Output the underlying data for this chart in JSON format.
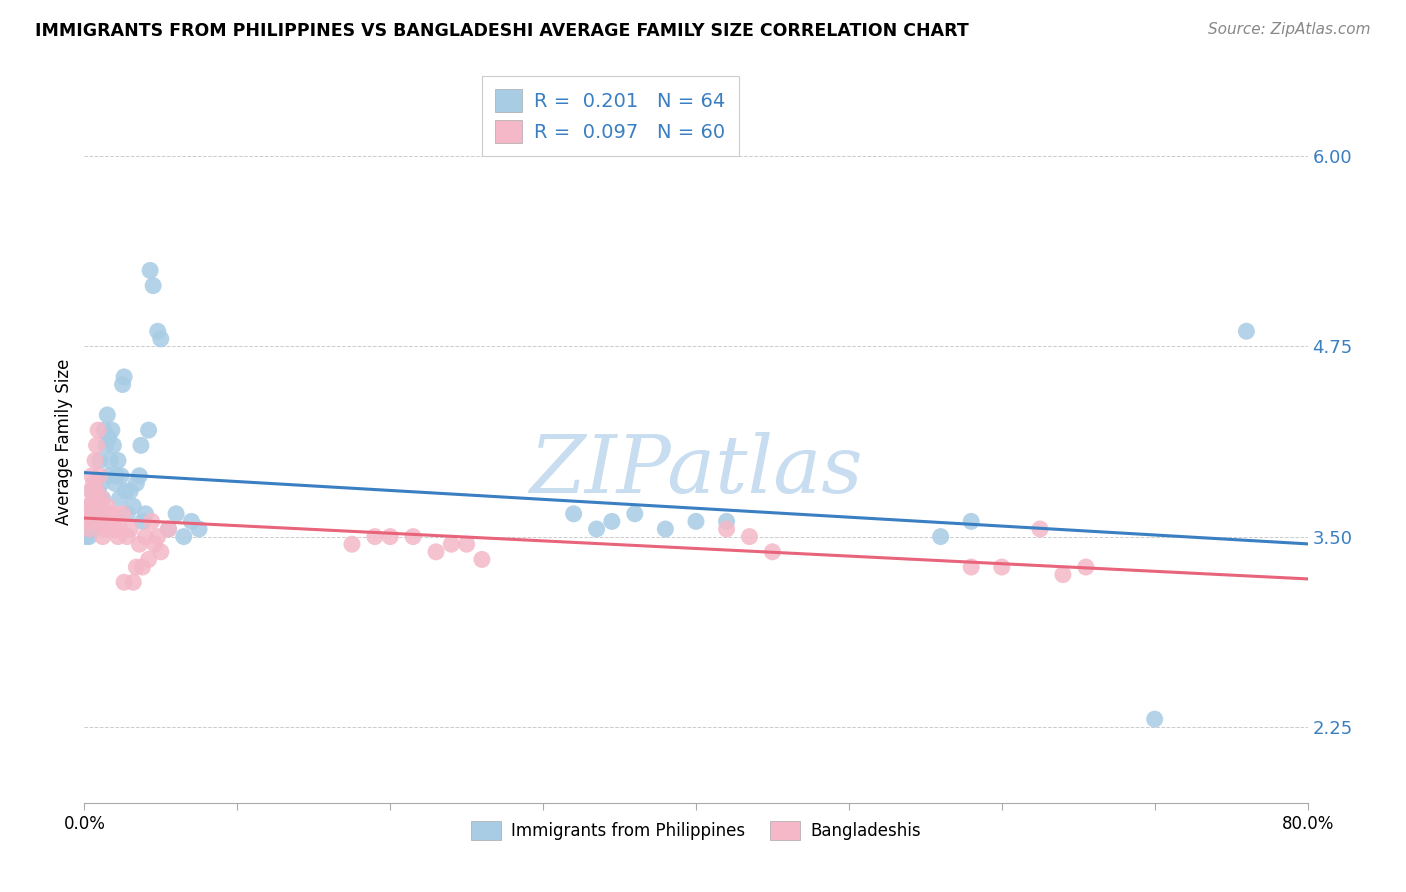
{
  "title": "IMMIGRANTS FROM PHILIPPINES VS BANGLADESHI AVERAGE FAMILY SIZE CORRELATION CHART",
  "source": "Source: ZipAtlas.com",
  "ylabel": "Average Family Size",
  "yticks": [
    2.25,
    3.5,
    4.75,
    6.0
  ],
  "legend_labels_bottom": [
    "Immigrants from Philippines",
    "Bangladeshis"
  ],
  "philippines_R": 0.201,
  "philippines_N": 64,
  "bangladeshi_R": 0.097,
  "bangladeshi_N": 60,
  "color_blue": "#a8cce4",
  "color_pink": "#f4b8c8",
  "color_blue_line": "#3a7fc1",
  "color_pink_line": "#e8647a",
  "color_blue_text": "#3a7fc1",
  "watermark_color": "#c8ddf0",
  "background_color": "#ffffff",
  "xlim": [
    0.0,
    0.8
  ],
  "ylim": [
    1.75,
    6.5
  ],
  "phil_x": [
    0.001,
    0.002,
    0.003,
    0.004,
    0.004,
    0.005,
    0.005,
    0.006,
    0.006,
    0.007,
    0.007,
    0.008,
    0.008,
    0.009,
    0.009,
    0.01,
    0.01,
    0.011,
    0.012,
    0.013,
    0.014,
    0.015,
    0.016,
    0.016,
    0.017,
    0.018,
    0.019,
    0.02,
    0.021,
    0.022,
    0.023,
    0.024,
    0.025,
    0.026,
    0.027,
    0.028,
    0.03,
    0.032,
    0.034,
    0.036,
    0.037,
    0.038,
    0.04,
    0.042,
    0.043,
    0.045,
    0.048,
    0.05,
    0.055,
    0.06,
    0.065,
    0.07,
    0.075,
    0.32,
    0.335,
    0.345,
    0.36,
    0.38,
    0.4,
    0.42,
    0.56,
    0.58,
    0.7,
    0.76
  ],
  "phil_y": [
    3.5,
    3.6,
    3.5,
    3.7,
    3.6,
    3.8,
    3.65,
    3.7,
    3.55,
    3.75,
    3.6,
    3.7,
    3.65,
    3.8,
    3.7,
    4.0,
    3.75,
    3.85,
    3.75,
    4.2,
    4.1,
    4.3,
    4.15,
    3.9,
    4.0,
    4.2,
    4.1,
    3.85,
    3.9,
    4.0,
    3.75,
    3.9,
    4.5,
    4.55,
    3.8,
    3.65,
    3.8,
    3.7,
    3.85,
    3.9,
    4.1,
    3.6,
    3.65,
    4.2,
    5.25,
    5.15,
    4.85,
    4.8,
    3.55,
    3.65,
    3.5,
    3.6,
    3.55,
    3.65,
    3.55,
    3.6,
    3.65,
    3.55,
    3.6,
    3.6,
    3.5,
    3.6,
    2.3,
    4.85
  ],
  "bang_x": [
    0.001,
    0.002,
    0.003,
    0.003,
    0.004,
    0.005,
    0.005,
    0.006,
    0.006,
    0.007,
    0.007,
    0.008,
    0.008,
    0.009,
    0.009,
    0.01,
    0.01,
    0.011,
    0.012,
    0.013,
    0.014,
    0.015,
    0.016,
    0.017,
    0.018,
    0.019,
    0.02,
    0.022,
    0.023,
    0.025,
    0.026,
    0.028,
    0.03,
    0.032,
    0.034,
    0.036,
    0.038,
    0.04,
    0.042,
    0.044,
    0.046,
    0.048,
    0.05,
    0.055,
    0.175,
    0.19,
    0.2,
    0.215,
    0.23,
    0.24,
    0.25,
    0.26,
    0.42,
    0.435,
    0.45,
    0.58,
    0.6,
    0.625,
    0.64,
    0.655
  ],
  "bang_y": [
    3.6,
    3.7,
    3.55,
    3.65,
    3.8,
    3.9,
    3.7,
    3.85,
    3.6,
    4.0,
    3.75,
    4.1,
    3.8,
    4.2,
    3.7,
    3.9,
    3.6,
    3.75,
    3.5,
    3.6,
    3.55,
    3.7,
    3.65,
    3.55,
    3.6,
    3.65,
    3.55,
    3.5,
    3.55,
    3.65,
    3.2,
    3.5,
    3.55,
    3.2,
    3.3,
    3.45,
    3.3,
    3.5,
    3.35,
    3.6,
    3.45,
    3.5,
    3.4,
    3.55,
    3.45,
    3.5,
    3.5,
    3.5,
    3.4,
    3.45,
    3.45,
    3.35,
    3.55,
    3.5,
    3.4,
    3.3,
    3.3,
    3.55,
    3.25,
    3.3
  ]
}
